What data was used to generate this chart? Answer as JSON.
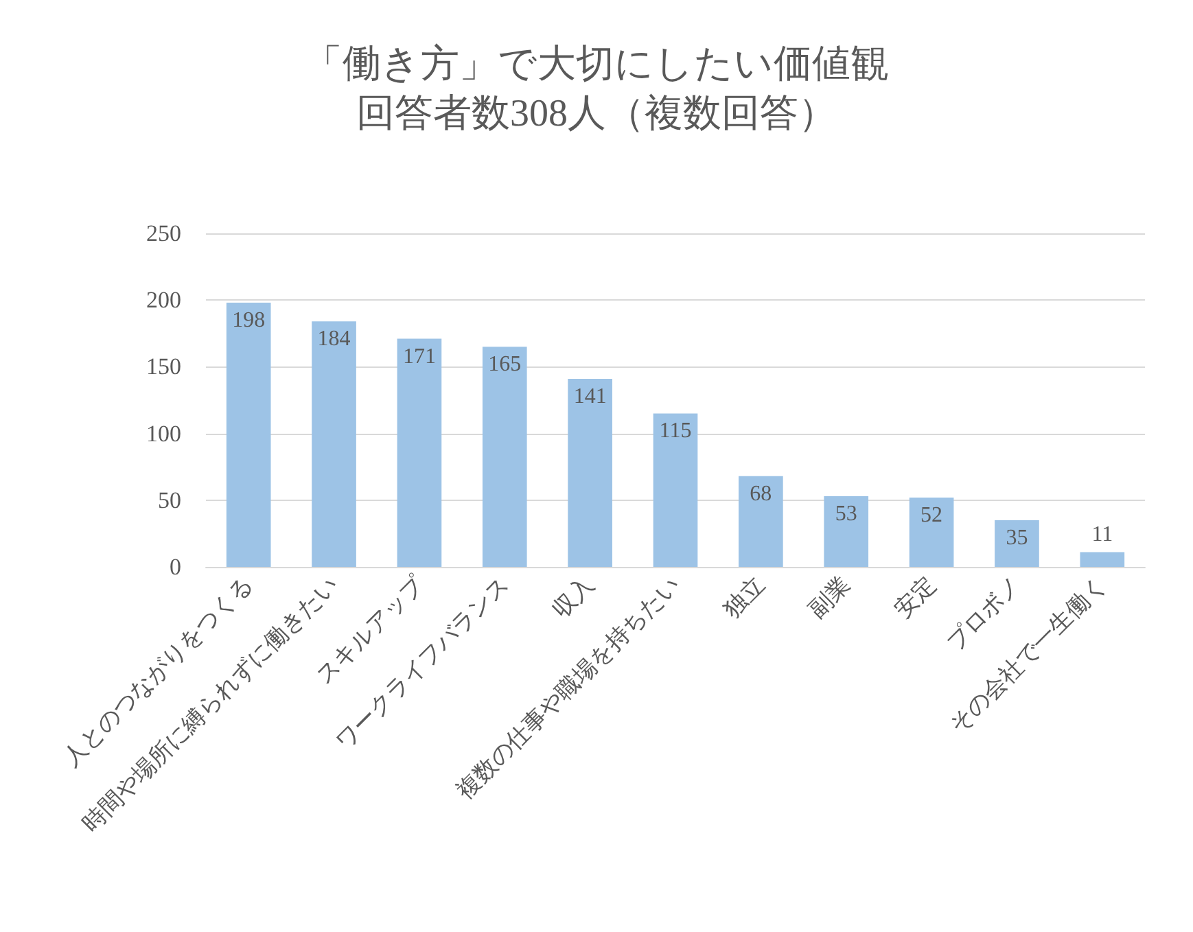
{
  "chart_data": {
    "type": "bar",
    "title": "「働き方」で大切にしたい価値観",
    "subtitle": "回答者数308人（複数回答）",
    "categories": [
      "人とのつながりをつくる",
      "時間や場所に縛られずに働きたい",
      "スキルアップ",
      "ワークライフバランス",
      "収入",
      "複数の仕事や職場を持ちたい",
      "独立",
      "副業",
      "安定",
      "プロボノ",
      "その会社で一生働く"
    ],
    "values": [
      198,
      184,
      171,
      165,
      141,
      115,
      68,
      53,
      52,
      35,
      11
    ],
    "color": "#9dc3e6",
    "ylim": [
      0,
      250
    ],
    "yticks": [
      0,
      50,
      100,
      150,
      200,
      250
    ],
    "grid": "y",
    "data_labels": true
  }
}
